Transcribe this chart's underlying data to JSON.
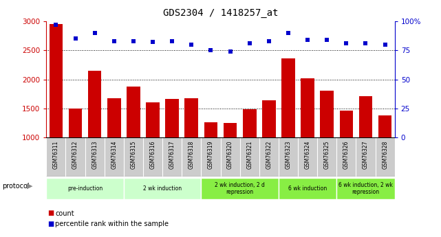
{
  "title": "GDS2304 / 1418257_at",
  "samples": [
    "GSM76311",
    "GSM76312",
    "GSM76313",
    "GSM76314",
    "GSM76315",
    "GSM76316",
    "GSM76317",
    "GSM76318",
    "GSM76319",
    "GSM76320",
    "GSM76321",
    "GSM76322",
    "GSM76323",
    "GSM76324",
    "GSM76325",
    "GSM76326",
    "GSM76327",
    "GSM76328"
  ],
  "counts": [
    2950,
    1500,
    2150,
    1680,
    1880,
    1600,
    1660,
    1680,
    1260,
    1250,
    1490,
    1640,
    2360,
    2020,
    1810,
    1460,
    1710,
    1380
  ],
  "percentile": [
    97,
    85,
    90,
    83,
    83,
    82,
    83,
    80,
    75,
    74,
    81,
    83,
    90,
    84,
    84,
    81,
    81,
    80
  ],
  "bar_color": "#cc0000",
  "dot_color": "#0000cc",
  "ylim_left": [
    1000,
    3000
  ],
  "ylim_right": [
    0,
    100
  ],
  "yticks_left": [
    1000,
    1500,
    2000,
    2500,
    3000
  ],
  "yticks_right": [
    0,
    25,
    50,
    75,
    100
  ],
  "grid_color": "#000000",
  "protocol_groups": [
    {
      "label": "pre-induction",
      "start": 0,
      "end": 3,
      "color": "#ccffcc"
    },
    {
      "label": "2 wk induction",
      "start": 4,
      "end": 7,
      "color": "#ccffcc"
    },
    {
      "label": "2 wk induction, 2 d\nrepression",
      "start": 8,
      "end": 11,
      "color": "#88ee44"
    },
    {
      "label": "6 wk induction",
      "start": 12,
      "end": 14,
      "color": "#88ee44"
    },
    {
      "label": "6 wk induction, 2 wk\nrepression",
      "start": 15,
      "end": 17,
      "color": "#88ee44"
    }
  ],
  "legend_count_label": "count",
  "legend_pct_label": "percentile rank within the sample",
  "protocol_label": "protocol",
  "bg_color": "#ffffff",
  "sample_bg_color": "#cccccc",
  "left_axis_color": "#cc0000",
  "right_axis_color": "#0000cc"
}
